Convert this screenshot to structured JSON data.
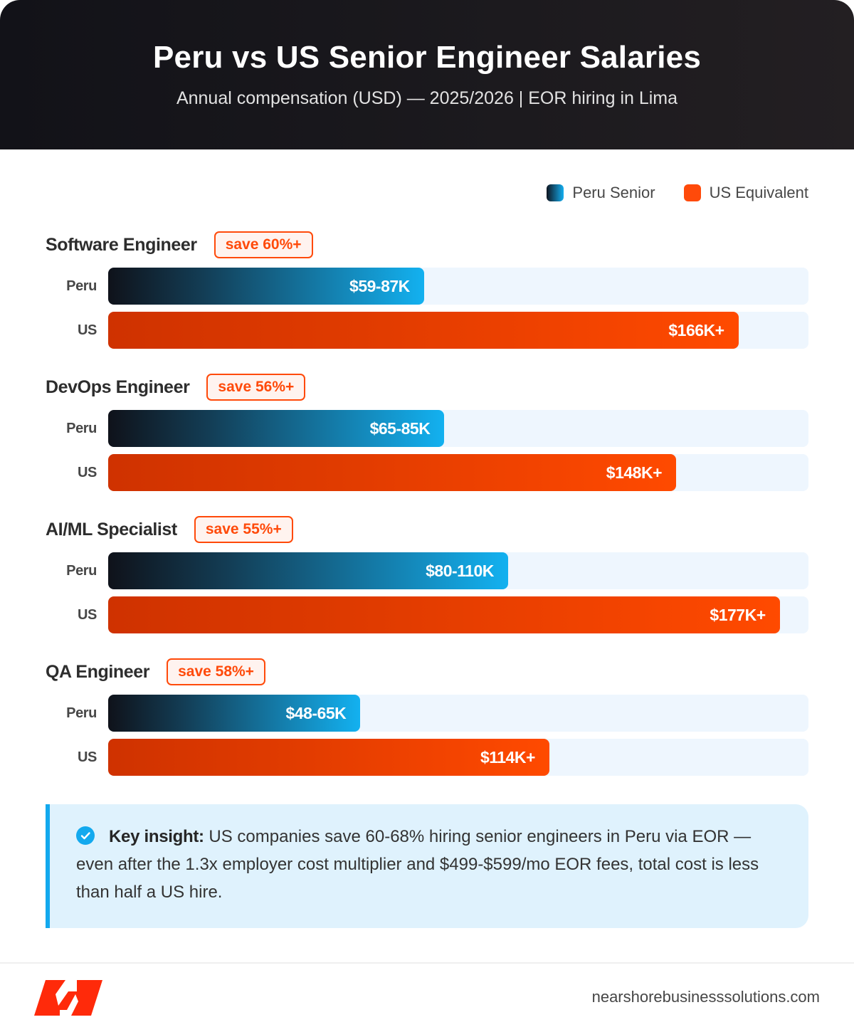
{
  "header": {
    "title": "Peru vs US Senior Engineer Salaries",
    "subtitle": "Annual compensation (USD) — 2025/2026 | EOR hiring in Lima"
  },
  "legend": [
    {
      "label": "Peru Senior",
      "color": "#13aef0"
    },
    {
      "label": "US Equivalent",
      "color": "#ff4a0a"
    }
  ],
  "groups": [
    {
      "role": "Software Engineer",
      "badge": "save 60%+",
      "rows": [
        {
          "label": "Peru",
          "value": "$59-87K",
          "pct": 45.1
        },
        {
          "label": "US",
          "value": "$166K+",
          "pct": 90.0
        }
      ]
    },
    {
      "role": "DevOps Engineer",
      "badge": "save 56%+",
      "rows": [
        {
          "label": "Peru",
          "value": "$65-85K",
          "pct": 48.0
        },
        {
          "label": "US",
          "value": "$148K+",
          "pct": 81.1
        }
      ]
    },
    {
      "role": "AI/ML Specialist",
      "badge": "save 55%+",
      "rows": [
        {
          "label": "Peru",
          "value": "$80-110K",
          "pct": 57.1
        },
        {
          "label": "US",
          "value": "$177K+",
          "pct": 95.9
        }
      ]
    },
    {
      "role": "QA Engineer",
      "badge": "save 58%+",
      "rows": [
        {
          "label": "Peru",
          "value": "$48-65K",
          "pct": 36.0
        },
        {
          "label": "US",
          "value": "$114K+",
          "pct": 63.0
        }
      ]
    }
  ],
  "insight": {
    "icon": "check-circle-icon",
    "label": "Key insight:",
    "text": " US companies save 60-68% hiring senior engineers in Peru via EOR — even after the 1.3x employer cost multiplier and $499-$599/mo EOR fees, total cost is less than half a US hire."
  },
  "footer": {
    "logo": "nearshore-logo",
    "site": "nearshorebusinesssolutions.com"
  },
  "colors": {
    "accent_orange": "#ff4a0a",
    "accent_blue": "#13a9ee",
    "header_bg": "#17161b",
    "track_bg": "#eef6fe",
    "insight_bg": "#dff2fd"
  },
  "chart_data": {
    "type": "bar",
    "orientation": "horizontal",
    "title": "Peru vs US Senior Engineer Salaries",
    "subtitle": "Annual compensation (USD) — 2025/2026 | EOR hiring in Lima",
    "categories": [
      "Software Engineer",
      "DevOps Engineer",
      "AI/ML Specialist",
      "QA Engineer"
    ],
    "series": [
      {
        "name": "Peru Senior",
        "labels": [
          "$59-87K",
          "$65-85K",
          "$80-110K",
          "$48-65K"
        ],
        "range_low": [
          59,
          65,
          80,
          48
        ],
        "range_high": [
          87,
          85,
          110,
          65
        ],
        "values": [
          87,
          85,
          110,
          65
        ]
      },
      {
        "name": "US Equivalent",
        "labels": [
          "$166K+",
          "$148K+",
          "$177K+",
          "$114K+"
        ],
        "values": [
          166,
          148,
          177,
          114
        ]
      }
    ],
    "annotations": [
      "save 60%+",
      "save 56%+",
      "save 55%+",
      "save 58%+"
    ],
    "unit": "thousand USD",
    "legend_position": "top-right",
    "grid": false
  }
}
